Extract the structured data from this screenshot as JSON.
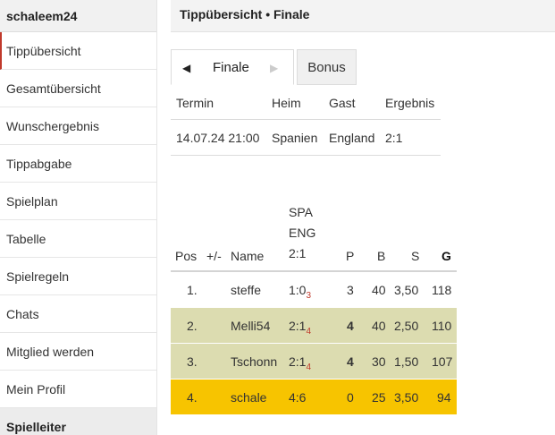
{
  "sidebar": {
    "user": "schaleem24",
    "items": [
      {
        "label": "Tippübersicht"
      },
      {
        "label": "Gesamtübersicht"
      },
      {
        "label": "Wunschergebnis"
      },
      {
        "label": "Tippabgabe"
      },
      {
        "label": "Spielplan"
      },
      {
        "label": "Tabelle"
      },
      {
        "label": "Spielregeln"
      },
      {
        "label": "Chats"
      },
      {
        "label": "Mitglied werden"
      },
      {
        "label": "Mein Profil"
      }
    ],
    "section": "Spielleiter"
  },
  "main": {
    "title": "Tippübersicht • Finale",
    "tabs": {
      "active": "Finale",
      "prev_icon": "◀",
      "next_icon": "▶",
      "other": "Bonus"
    },
    "match": {
      "headers": {
        "termin": "Termin",
        "heim": "Heim",
        "gast": "Gast",
        "ergebnis": "Ergebnis"
      },
      "row": {
        "termin": "14.07.24 21:00",
        "heim": "Spanien",
        "gast": "England",
        "ergebnis": "2:1"
      }
    },
    "ranking": {
      "headers": {
        "pos": "Pos",
        "diff": "+/-",
        "name": "Name",
        "spa": "SPA",
        "eng": "ENG",
        "result": "2:1",
        "p": "P",
        "b": "B",
        "s": "S",
        "g": "G"
      },
      "rows": [
        {
          "pos": "1.",
          "name": "steffe",
          "tip": "1:0",
          "tip_points": "3",
          "p": "3",
          "b": "40",
          "s": "3,50",
          "g": "118"
        },
        {
          "pos": "2.",
          "name": "Melli54",
          "tip": "2:1",
          "tip_points": "4",
          "p": "4",
          "b": "40",
          "s": "2,50",
          "g": "110"
        },
        {
          "pos": "3.",
          "name": "Tschonn",
          "tip": "2:1",
          "tip_points": "4",
          "p": "4",
          "b": "30",
          "s": "1,50",
          "g": "107"
        },
        {
          "pos": "4.",
          "name": "schale",
          "tip": "4:6",
          "tip_points": "",
          "p": "0",
          "b": "25",
          "s": "3,50",
          "g": "94"
        }
      ]
    }
  },
  "colors": {
    "highlight_green": "#dcdcb0",
    "highlight_yellow": "#f7c400",
    "accent_red": "#c0392b"
  }
}
